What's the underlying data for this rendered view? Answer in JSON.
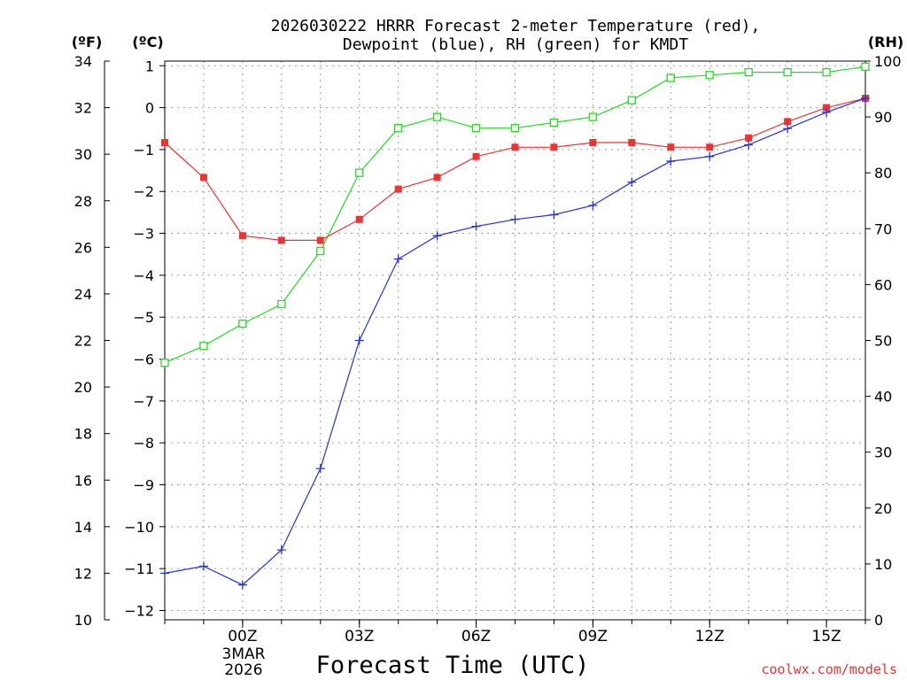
{
  "chart_data": {
    "type": "line",
    "title_line1": "2026030222 HRRR Forecast 2-meter Temperature (red),",
    "title_line2": "Dewpoint (blue), RH (green) for KMDT",
    "xlabel": "Forecast Time (UTC)",
    "watermark": "coolwx.com/models",
    "units": {
      "f": "(ºF)",
      "c": "(ºC)",
      "rh": "(RH)"
    },
    "x_hours": [
      22,
      23,
      24,
      25,
      26,
      27,
      28,
      29,
      30,
      31,
      32,
      33,
      34,
      35,
      36,
      37,
      38,
      39,
      40
    ],
    "xlim": [
      22,
      40
    ],
    "x_ticks": [
      {
        "hour": 24,
        "label": "00Z"
      },
      {
        "hour": 27,
        "label": "03Z"
      },
      {
        "hour": 30,
        "label": "06Z"
      },
      {
        "hour": 33,
        "label": "09Z"
      },
      {
        "hour": 36,
        "label": "12Z"
      },
      {
        "hour": 39,
        "label": "15Z"
      }
    ],
    "date_label": [
      "3MAR",
      "2026"
    ],
    "f_axis": {
      "ylim": [
        10,
        34
      ],
      "ticks": [
        10,
        12,
        14,
        16,
        18,
        20,
        22,
        24,
        26,
        28,
        30,
        32,
        34
      ]
    },
    "c_axis": {
      "ticks": [
        "1",
        "0",
        "−1",
        "−2",
        "−3",
        "−4",
        "−5",
        "−6",
        "−7",
        "−8",
        "−9",
        "−10",
        "−11",
        "−12"
      ],
      "tick_values": [
        1,
        0,
        -1,
        -2,
        -3,
        -4,
        -5,
        -6,
        -7,
        -8,
        -9,
        -10,
        -11,
        -12
      ]
    },
    "rh_axis": {
      "ylim": [
        0,
        100
      ],
      "ticks": [
        0,
        10,
        20,
        30,
        40,
        50,
        60,
        70,
        80,
        90,
        100
      ]
    },
    "series": [
      {
        "name": "Temperature",
        "axis": "f",
        "color": "#ee3333",
        "marker": "filled-square",
        "values": [
          30.5,
          29.0,
          26.5,
          26.3,
          26.3,
          27.2,
          28.5,
          29.0,
          29.9,
          30.3,
          30.3,
          30.5,
          30.5,
          30.3,
          30.3,
          30.7,
          31.4,
          32.0,
          32.4
        ]
      },
      {
        "name": "Dewpoint",
        "axis": "f",
        "color": "#2233dd",
        "marker": "plus",
        "values": [
          12.0,
          12.3,
          11.5,
          13.0,
          16.5,
          22.0,
          25.5,
          26.5,
          26.9,
          27.2,
          27.4,
          27.8,
          28.8,
          29.7,
          29.9,
          30.4,
          31.1,
          31.8,
          32.4
        ]
      },
      {
        "name": "RH",
        "axis": "rh",
        "color": "#22dd22",
        "marker": "open-square",
        "values": [
          46,
          49,
          53,
          56.5,
          66,
          80,
          88,
          90,
          88,
          88,
          89,
          90,
          93,
          97,
          97.5,
          98,
          98,
          98,
          99
        ]
      }
    ]
  }
}
